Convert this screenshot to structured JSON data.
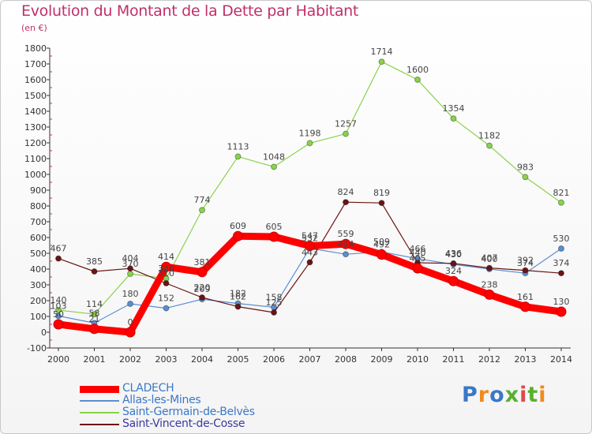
{
  "header": {
    "title": "Evolution du Montant de la Dette par Habitant",
    "unit": "(en €)"
  },
  "logo": {
    "text": "Proxiti"
  },
  "chart_data": {
    "type": "line",
    "title": "Evolution du Montant de la Dette par Habitant",
    "ylabel": "(en €)",
    "xlabel": "",
    "x": [
      "2000",
      "2001",
      "2002",
      "2003",
      "2004",
      "2005",
      "2006",
      "2007",
      "2008",
      "2009",
      "2010",
      "2011",
      "2012",
      "2013",
      "2014"
    ],
    "ylim": [
      -100,
      1800
    ],
    "yticks": [
      -100,
      0,
      100,
      200,
      300,
      400,
      500,
      600,
      700,
      800,
      900,
      1000,
      1100,
      1200,
      1300,
      1400,
      1500,
      1600,
      1700,
      1800
    ],
    "grid": false,
    "legend_position": "bottom-left",
    "series": [
      {
        "name": "CLADECH",
        "color": "#ff0000",
        "values": [
          50,
          21,
          0,
          414,
          381,
          609,
          605,
          547,
          559,
          492,
          405,
          324,
          238,
          161,
          130
        ]
      },
      {
        "name": "Allas-les-Mines",
        "color": "#5a8fd0",
        "values": [
          103,
          58,
          180,
          152,
          209,
          182,
          158,
          532,
          494,
          509,
          466,
          430,
          400,
          374,
          530
        ]
      },
      {
        "name": "Saint-Germain-de-Belvès",
        "color": "#8ad24a",
        "values": [
          140,
          114,
          370,
          340,
          774,
          1113,
          1048,
          1198,
          1257,
          1714,
          1600,
          1354,
          1182,
          983,
          821
        ]
      },
      {
        "name": "Saint-Vincent-de-Cosse",
        "color": "#6b1414",
        "values": [
          467,
          385,
          404,
          310,
          220,
          162,
          125,
          443,
          824,
          819,
          440,
          436,
          407,
          392,
          374
        ]
      }
    ],
    "data_labels": [
      {
        "series": "CLADECH",
        "labels": [
          "50",
          "21",
          "0",
          "414",
          "381",
          "609",
          "605",
          "547",
          "559",
          "492",
          "405",
          "324",
          "238",
          "161",
          "130"
        ]
      },
      {
        "series": "Allas-les-Mines",
        "labels": [
          "103",
          "58",
          "180",
          "152",
          "209",
          "182",
          "158",
          "532",
          "494",
          "509",
          "466",
          "430",
          "400",
          "374",
          "530"
        ]
      },
      {
        "series": "Saint-Germain-de-Belvès",
        "labels": [
          "140",
          "114",
          "370",
          "340",
          "774",
          "1113",
          "1048",
          "1198",
          "1257",
          "1714",
          "1600",
          "1354",
          "1182",
          "983",
          "821"
        ]
      },
      {
        "series": "Saint-Vincent-de-Cosse",
        "labels": [
          "467",
          "385",
          "404",
          "310",
          "220",
          "162",
          "125",
          "443",
          "824",
          "819",
          "440",
          "436",
          "407",
          "392",
          "374"
        ]
      }
    ]
  }
}
